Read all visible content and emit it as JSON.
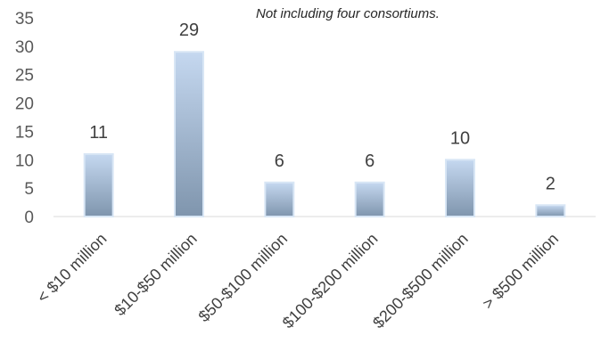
{
  "chart_data": {
    "type": "bar",
    "title": "",
    "annotation": "Not including four consortiums.",
    "categories": [
      "< $10 million",
      "$10-$50 million",
      "$50-$100 million",
      "$100-$200 million",
      "$200-$500 million",
      "> $500 million"
    ],
    "values": [
      11,
      29,
      6,
      6,
      10,
      2
    ],
    "data_labels": [
      "11",
      "29",
      "6",
      "6",
      "10",
      "2"
    ],
    "yticks": [
      "0",
      "5",
      "10",
      "15",
      "20",
      "25",
      "30",
      "35"
    ],
    "ylim": [
      0,
      35
    ],
    "xlabel": "",
    "ylabel": "",
    "grid": false,
    "legend": "none",
    "colors": {
      "bar_top": "#c5d8f0",
      "bar_bottom": "#7f95ad",
      "bar_edge": "#d8e6f5",
      "axis": "#d9d9d9"
    }
  }
}
